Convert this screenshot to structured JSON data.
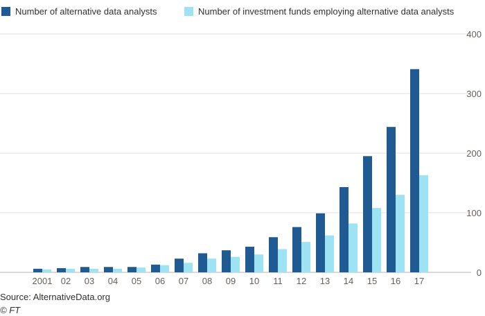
{
  "chart_data": {
    "type": "bar",
    "categories": [
      "2001",
      "02",
      "03",
      "04",
      "05",
      "06",
      "07",
      "08",
      "09",
      "10",
      "11",
      "12",
      "13",
      "14",
      "15",
      "16",
      "17"
    ],
    "series": [
      {
        "name": "Number of alternative data analysts",
        "color": "#1f5b92",
        "values": [
          6,
          7,
          9,
          9,
          9,
          13,
          23,
          32,
          37,
          43,
          59,
          76,
          99,
          143,
          195,
          244,
          341
        ]
      },
      {
        "name": "Number of investment funds employing alternative data analysts",
        "color": "#9ee3f3",
        "values": [
          5,
          6,
          6,
          6,
          8,
          12,
          16,
          23,
          26,
          30,
          39,
          51,
          62,
          82,
          108,
          130,
          163
        ]
      }
    ],
    "ylim": [
      0,
      400
    ],
    "yticks": [
      0,
      100,
      200,
      300,
      400
    ],
    "grid": true,
    "legend_position": "top-left",
    "yaxis_side": "right"
  },
  "footer": {
    "source": "Source: AlternativeData.org",
    "credit": "© FT"
  }
}
